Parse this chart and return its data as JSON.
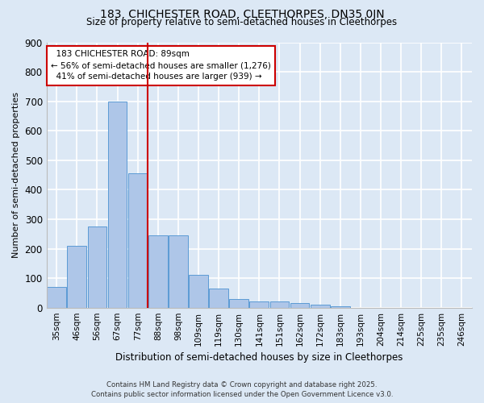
{
  "title1": "183, CHICHESTER ROAD, CLEETHORPES, DN35 0JN",
  "title2": "Size of property relative to semi-detached houses in Cleethorpes",
  "xlabel": "Distribution of semi-detached houses by size in Cleethorpes",
  "ylabel": "Number of semi-detached properties",
  "categories": [
    "35sqm",
    "46sqm",
    "56sqm",
    "67sqm",
    "77sqm",
    "88sqm",
    "98sqm",
    "109sqm",
    "119sqm",
    "130sqm",
    "141sqm",
    "151sqm",
    "162sqm",
    "172sqm",
    "183sqm",
    "193sqm",
    "204sqm",
    "214sqm",
    "225sqm",
    "235sqm",
    "246sqm"
  ],
  "values": [
    70,
    210,
    275,
    700,
    455,
    245,
    245,
    110,
    65,
    30,
    20,
    20,
    15,
    10,
    5,
    0,
    0,
    0,
    0,
    0,
    0
  ],
  "bar_color": "#aec6e8",
  "bar_edge_color": "#5b9bd5",
  "bg_color": "#dce8f5",
  "grid_color": "#ffffff",
  "vline_index": 4.5,
  "marker_label": "183 CHICHESTER ROAD: 89sqm",
  "pct_smaller": "56% of semi-detached houses are smaller (1,276)",
  "pct_larger": "41% of semi-detached houses are larger (939)",
  "annotation_box_color": "#ffffff",
  "annotation_box_edge": "#cc0000",
  "vline_color": "#cc0000",
  "footer1": "Contains HM Land Registry data © Crown copyright and database right 2025.",
  "footer2": "Contains public sector information licensed under the Open Government Licence v3.0.",
  "ylim": [
    0,
    900
  ],
  "yticks": [
    0,
    100,
    200,
    300,
    400,
    500,
    600,
    700,
    800,
    900
  ]
}
